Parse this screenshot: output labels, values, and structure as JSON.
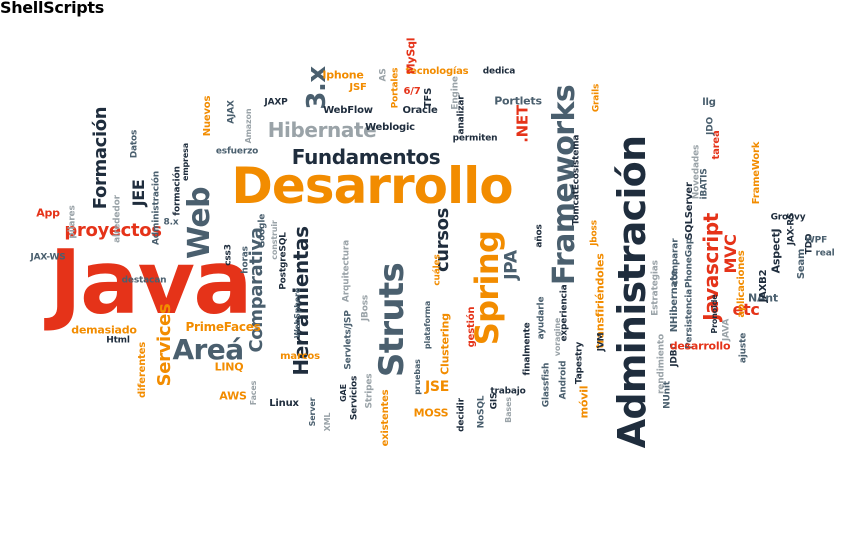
{
  "colors": {
    "orange": "#f28c00",
    "red": "#e53319",
    "navy": "#1f2d3d",
    "slate": "#4a5f6e",
    "gray": "#9aa3a8"
  },
  "words": [
    {
      "text": "Java",
      "color": "red"
    },
    {
      "text": "Desarrollo",
      "color": "orange"
    },
    {
      "text": "Administración",
      "color": "navy"
    },
    {
      "text": "Struts",
      "color": "slate"
    },
    {
      "text": "Spring",
      "color": "orange"
    },
    {
      "text": "Frameworks",
      "color": "slate"
    },
    {
      "text": "Web",
      "color": "slate"
    },
    {
      "text": "Areá",
      "color": "slate"
    },
    {
      "text": "Hibernate",
      "color": "gray"
    },
    {
      "text": "3.x",
      "color": "slate"
    },
    {
      "text": "Fundamentos",
      "color": "navy"
    },
    {
      "text": "Javascript",
      "color": "red"
    },
    {
      "text": "proyectos",
      "color": "red"
    },
    {
      "text": "Formación",
      "color": "navy"
    },
    {
      "text": "JEE",
      "color": "navy"
    },
    {
      "text": "Services",
      "color": "orange"
    },
    {
      "text": "Comparativa",
      "color": "slate"
    },
    {
      "text": "Herramientas",
      "color": "navy"
    },
    {
      "text": "cursos",
      "color": "navy"
    },
    {
      "text": "JSE",
      "color": "orange"
    },
    {
      "text": "MVC",
      "color": "red"
    },
    {
      "text": "etc",
      "color": "red"
    },
    {
      "text": "JPA",
      "color": "slate"
    },
    {
      "text": ".NET",
      "color": "red"
    },
    {
      "text": "PrimeFaces",
      "color": "orange"
    },
    {
      "text": "demasiado",
      "color": "orange"
    },
    {
      "text": "App",
      "color": "red"
    },
    {
      "text": "JAX-WS",
      "color": "slate"
    },
    {
      "text": "Html",
      "color": "navy"
    },
    {
      "text": "diferentes",
      "color": "orange"
    },
    {
      "text": "destacan",
      "color": "slate"
    },
    {
      "text": "LINQ",
      "color": "orange"
    },
    {
      "text": "AWS",
      "color": "orange"
    },
    {
      "text": "Linux",
      "color": "navy"
    },
    {
      "text": "Faces",
      "color": "gray"
    },
    {
      "text": "pilares",
      "color": "gray"
    },
    {
      "text": "alrededor",
      "color": "gray"
    },
    {
      "text": "Datos",
      "color": "slate"
    },
    {
      "text": "Administración",
      "color": "slate"
    },
    {
      "text": "8.x",
      "color": "slate"
    },
    {
      "text": "formación",
      "color": "navy"
    },
    {
      "text": "empresa",
      "color": "navy"
    },
    {
      "text": "Nuevos",
      "color": "orange"
    },
    {
      "text": "AJAX",
      "color": "slate"
    },
    {
      "text": "Amazon",
      "color": "gray"
    },
    {
      "text": "esfuerzo",
      "color": "slate"
    },
    {
      "text": "JAXP",
      "color": "navy"
    },
    {
      "text": "css3",
      "color": "navy"
    },
    {
      "text": "horas",
      "color": "slate"
    },
    {
      "text": "Google",
      "color": "slate"
    },
    {
      "text": "construir",
      "color": "gray"
    },
    {
      "text": "PostgreSQL",
      "color": "navy"
    },
    {
      "text": "Arquitectura",
      "color": "gray"
    },
    {
      "text": "WebSphere",
      "color": "slate"
    },
    {
      "text": "marcos",
      "color": "orange"
    },
    {
      "text": "Servlets/JSP",
      "color": "slate"
    },
    {
      "text": "JBoss",
      "color": "gray"
    },
    {
      "text": "Server",
      "color": "slate"
    },
    {
      "text": "XML",
      "color": "gray"
    },
    {
      "text": "GAE",
      "color": "navy"
    },
    {
      "text": "Servicios",
      "color": "navy"
    },
    {
      "text": "Stripes",
      "color": "gray"
    },
    {
      "text": "existentes",
      "color": "orange"
    },
    {
      "text": "pruebas",
      "color": "slate"
    },
    {
      "text": "plataforma",
      "color": "slate"
    },
    {
      "text": "cuáles",
      "color": "orange"
    },
    {
      "text": "Clustering",
      "color": "orange"
    },
    {
      "text": "MOSS",
      "color": "orange"
    },
    {
      "text": "decidir",
      "color": "navy"
    },
    {
      "text": "NoSQL",
      "color": "slate"
    },
    {
      "text": "GIS",
      "color": "navy"
    },
    {
      "text": "trabajo",
      "color": "navy"
    },
    {
      "text": "Bases",
      "color": "gray"
    },
    {
      "text": "gestión",
      "color": "red"
    },
    {
      "text": "finalmente",
      "color": "navy"
    },
    {
      "text": "ayudarle",
      "color": "slate"
    },
    {
      "text": "voragine",
      "color": "gray"
    },
    {
      "text": "Android",
      "color": "slate"
    },
    {
      "text": "Glassfish",
      "color": "slate"
    },
    {
      "text": "Tapestry",
      "color": "navy"
    },
    {
      "text": "experiencia",
      "color": "navy"
    },
    {
      "text": "años",
      "color": "navy"
    },
    {
      "text": "móvil",
      "color": "orange"
    },
    {
      "text": "transfiriéndoles",
      "color": "orange"
    },
    {
      "text": "JVM",
      "color": "navy"
    },
    {
      "text": "TomcatEcosistema",
      "color": "navy"
    },
    {
      "text": "Jboss",
      "color": "orange"
    },
    {
      "text": "Estrategias",
      "color": "gray"
    },
    {
      "text": "comparar",
      "color": "slate"
    },
    {
      "text": "rendimiento",
      "color": "gray"
    },
    {
      "text": "NUnit",
      "color": "slate"
    },
    {
      "text": "JDBC",
      "color": "navy"
    },
    {
      "text": "NHibernate",
      "color": "slate"
    },
    {
      "text": "PhoneGap",
      "color": "slate"
    },
    {
      "text": "SQLServer",
      "color": "navy"
    },
    {
      "text": "Persistencia",
      "color": "slate"
    },
    {
      "text": "desarrollo",
      "color": "red"
    },
    {
      "text": "Novedades",
      "color": "gray"
    },
    {
      "text": "iBATIS",
      "color": "slate"
    },
    {
      "text": "Pronoide",
      "color": "navy"
    },
    {
      "text": "aplicaciones",
      "color": "orange"
    },
    {
      "text": "FrameWork",
      "color": "orange"
    },
    {
      "text": "tarea",
      "color": "red"
    },
    {
      "text": "JAVA",
      "color": "gray"
    },
    {
      "text": "ajuste",
      "color": "slate"
    },
    {
      "text": "NAnt",
      "color": "slate"
    },
    {
      "text": "JAXB2",
      "color": "navy"
    },
    {
      "text": "AspectJ",
      "color": "navy"
    },
    {
      "text": "JAX-RS",
      "color": "navy"
    },
    {
      "text": "Groovy",
      "color": "navy"
    },
    {
      "text": "Seam",
      "color": "slate"
    },
    {
      "text": "TDD",
      "color": "navy"
    },
    {
      "text": "WPF",
      "color": "slate"
    },
    {
      "text": "real",
      "color": "slate"
    },
    {
      "text": "llg",
      "color": "slate"
    },
    {
      "text": "JDO",
      "color": "slate"
    },
    {
      "text": "Grails",
      "color": "orange"
    },
    {
      "text": "Portlets",
      "color": "slate"
    },
    {
      "text": "dedica",
      "color": "navy"
    },
    {
      "text": "Engine",
      "color": "gray"
    },
    {
      "text": "analizar",
      "color": "navy"
    },
    {
      "text": "permiten",
      "color": "navy"
    },
    {
      "text": "TFS",
      "color": "navy"
    },
    {
      "text": "tecnologías",
      "color": "orange"
    },
    {
      "text": "AS",
      "color": "gray"
    },
    {
      "text": "Portales",
      "color": "orange"
    },
    {
      "text": "MySql",
      "color": "red"
    },
    {
      "text": "6/7",
      "color": "red"
    },
    {
      "text": "Iphone",
      "color": "orange"
    },
    {
      "text": "JSF",
      "color": "orange"
    },
    {
      "text": "WebFlow",
      "color": "navy"
    },
    {
      "text": "Oracle",
      "color": "navy"
    },
    {
      "text": "Weblogic",
      "color": "navy"
    },
    {
      "text": "ShellScripts",
      "color": "slate"
    }
  ]
}
